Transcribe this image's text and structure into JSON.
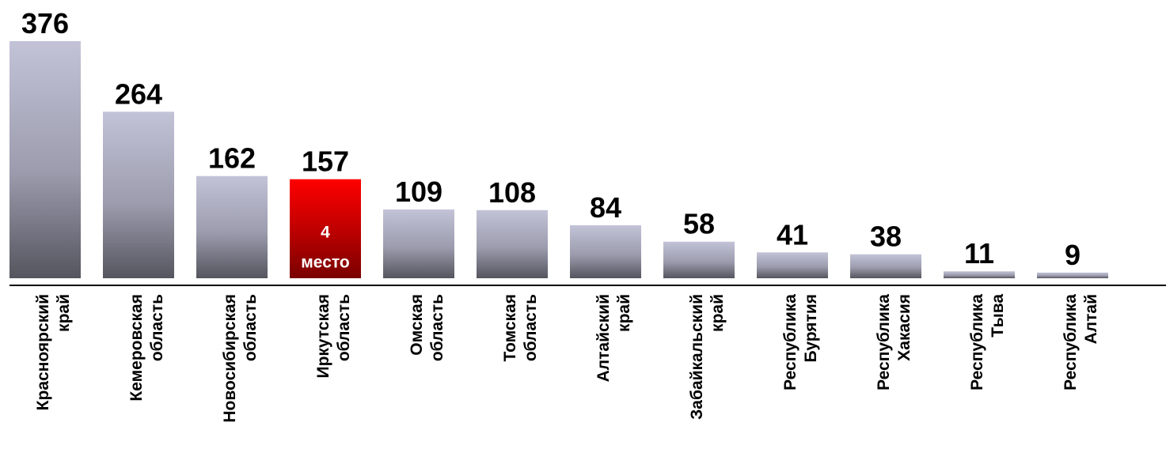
{
  "chart_data": {
    "type": "bar",
    "title": "",
    "xlabel": "",
    "ylabel": "",
    "ylim": [
      0,
      376
    ],
    "grid": false,
    "legend": "none",
    "categories": [
      [
        "Красноярский",
        "край"
      ],
      [
        "Кемеровская",
        "область"
      ],
      [
        "Новосибирская",
        "область"
      ],
      [
        "Иркутская",
        "область"
      ],
      [
        "Омская",
        "область"
      ],
      [
        "Томская",
        "область"
      ],
      [
        "Алтайский",
        "край"
      ],
      [
        "Забайкальский",
        "край"
      ],
      [
        "Республика",
        "Бурятия"
      ],
      [
        "Республика",
        "Хакасия"
      ],
      [
        "Республика",
        "Тыва"
      ],
      [
        "Республика",
        "Алтай"
      ]
    ],
    "values": [
      376,
      264,
      162,
      157,
      109,
      108,
      84,
      58,
      41,
      38,
      11,
      9
    ],
    "value_labels": [
      "376",
      "264",
      "162",
      "157",
      "109",
      "108",
      "84",
      "58",
      "41",
      "38",
      "11",
      "9"
    ],
    "highlight": {
      "index": 3,
      "lines": [
        "4",
        "место"
      ],
      "color_top": "#ff0000",
      "color_bottom": "#7a0000"
    },
    "bar_color_top": "#c3c3d8",
    "bar_color_bottom": "#55555f"
  }
}
